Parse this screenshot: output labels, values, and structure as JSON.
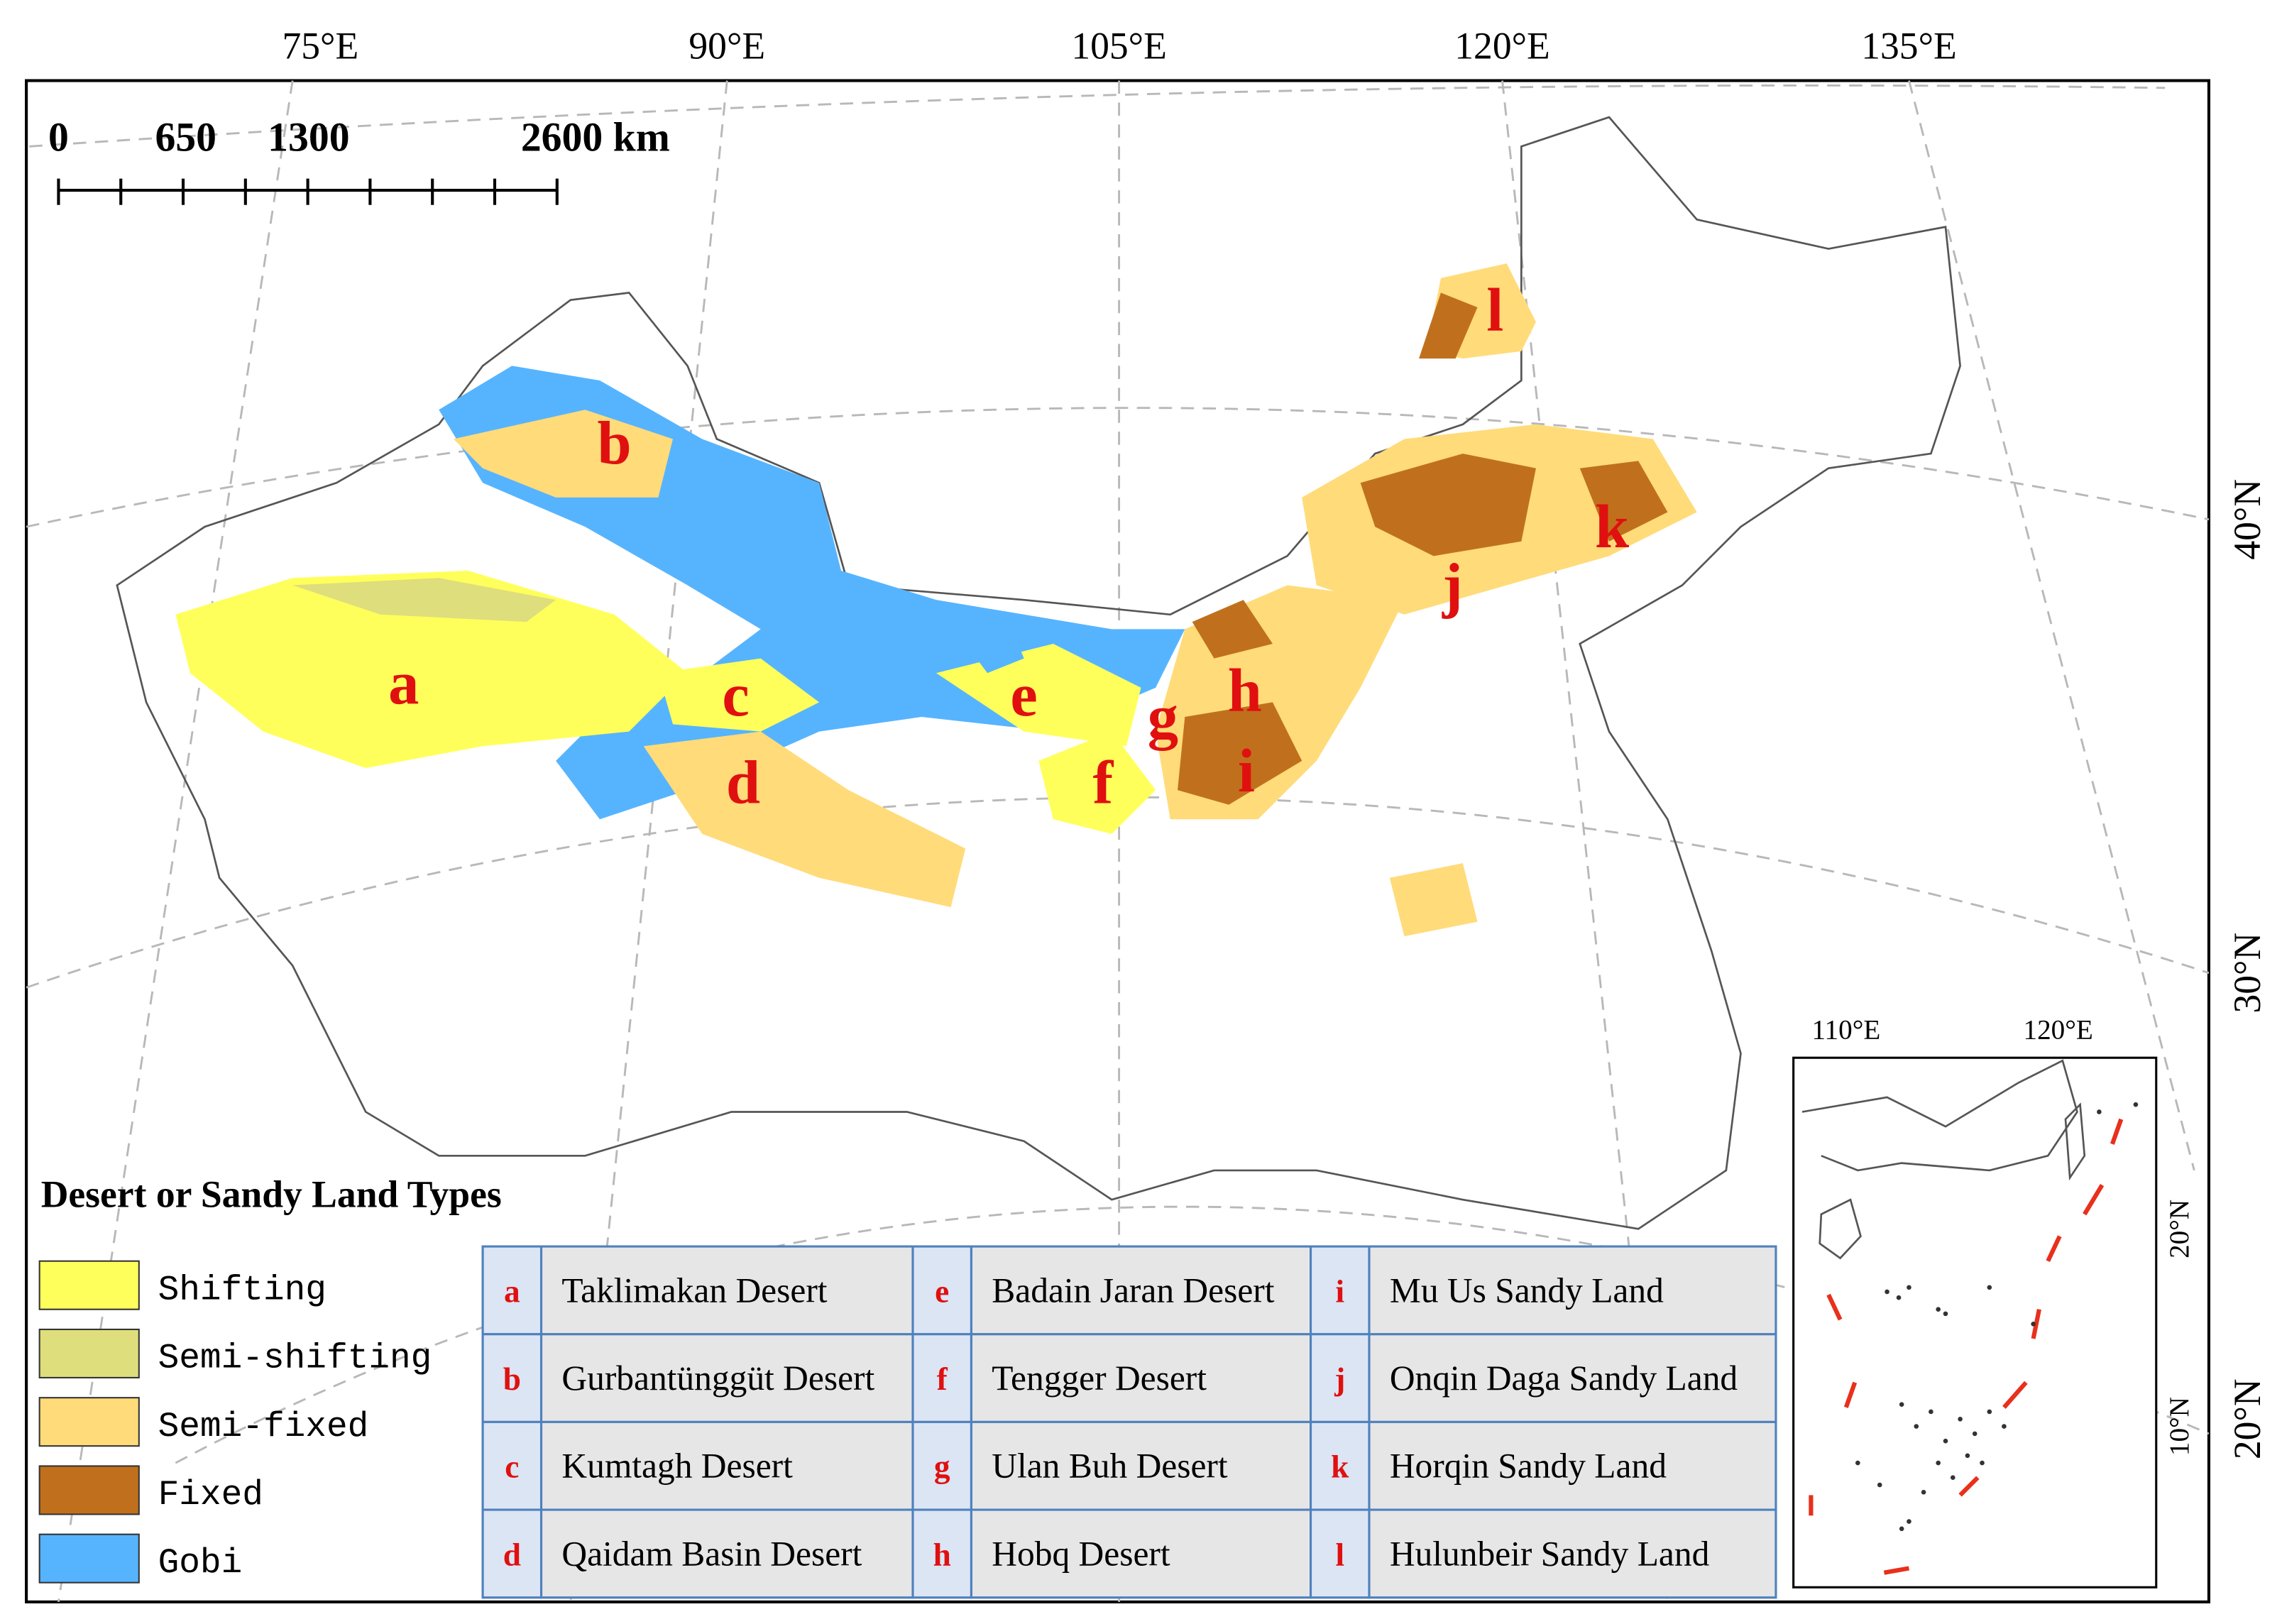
{
  "graticule": {
    "longitudes": [
      "75°E",
      "90°E",
      "105°E",
      "120°E",
      "135°E"
    ],
    "latitudes": [
      "40°N",
      "30°N",
      "20°N"
    ]
  },
  "scale_bar": {
    "labels": [
      "0",
      "650",
      "1300",
      "2600 km"
    ]
  },
  "map_labels": [
    "a",
    "b",
    "c",
    "d",
    "e",
    "f",
    "g",
    "h",
    "i",
    "j",
    "k",
    "l"
  ],
  "legend": {
    "title": "Desert or Sandy Land Types",
    "items": [
      {
        "label": "Shifting",
        "color": "#ffff5c"
      },
      {
        "label": "Semi-shifting",
        "color": "#dede7c"
      },
      {
        "label": "Semi-fixed",
        "color": "#ffdb7a"
      },
      {
        "label": "Fixed",
        "color": "#c0701c"
      },
      {
        "label": "Gobi",
        "color": "#56b4ff"
      }
    ]
  },
  "table": {
    "rows": [
      [
        {
          "letter": "a",
          "name": "Taklimakan Desert"
        },
        {
          "letter": "e",
          "name": "Badain Jaran Desert"
        },
        {
          "letter": "i",
          "name": "Mu Us Sandy Land"
        }
      ],
      [
        {
          "letter": "b",
          "name": "Gurbantünggüt Desert"
        },
        {
          "letter": "f",
          "name": "Tengger Desert"
        },
        {
          "letter": "j",
          "name": "Onqin Daga Sandy Land"
        }
      ],
      [
        {
          "letter": "c",
          "name": "Kumtagh Desert"
        },
        {
          "letter": "g",
          "name": "Ulan Buh Desert"
        },
        {
          "letter": "k",
          "name": "Horqin Sandy Land"
        }
      ],
      [
        {
          "letter": "d",
          "name": "Qaidam Basin Desert"
        },
        {
          "letter": "h",
          "name": "Hobq Desert"
        },
        {
          "letter": "l",
          "name": "Hulunbeir Sandy Land"
        }
      ]
    ]
  },
  "inset": {
    "longitudes": [
      "110°E",
      "120°E"
    ],
    "latitudes": [
      "20°N",
      "10°N"
    ]
  }
}
